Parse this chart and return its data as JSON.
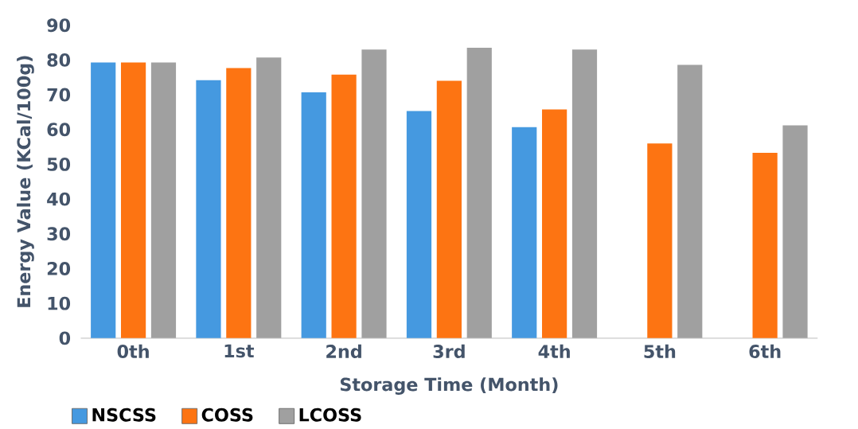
{
  "chart_data": {
    "type": "bar",
    "xlabel": "Storage Time (Month)",
    "ylabel": "Energy Value (KCal/100g)",
    "categories": [
      "0th",
      "1st",
      "2nd",
      "3rd",
      "4th",
      "5th",
      "6th"
    ],
    "series": [
      {
        "name": "NSCSS",
        "color": "#4599e0",
        "values": [
          79.3,
          74.2,
          70.7,
          65.3,
          60.7,
          null,
          null
        ]
      },
      {
        "name": "COSS",
        "color": "#fd7412",
        "values": [
          79.3,
          77.7,
          75.8,
          74.0,
          65.8,
          56.0,
          53.3
        ]
      },
      {
        "name": "LCOSS",
        "color": "#a0a0a0",
        "values": [
          79.3,
          80.7,
          83.0,
          83.5,
          83.0,
          78.6,
          61.2
        ]
      }
    ],
    "ylim": [
      0,
      90
    ],
    "yticks": [
      0,
      10,
      20,
      30,
      40,
      50,
      60,
      70,
      80,
      90
    ],
    "legend": "bottom left"
  }
}
